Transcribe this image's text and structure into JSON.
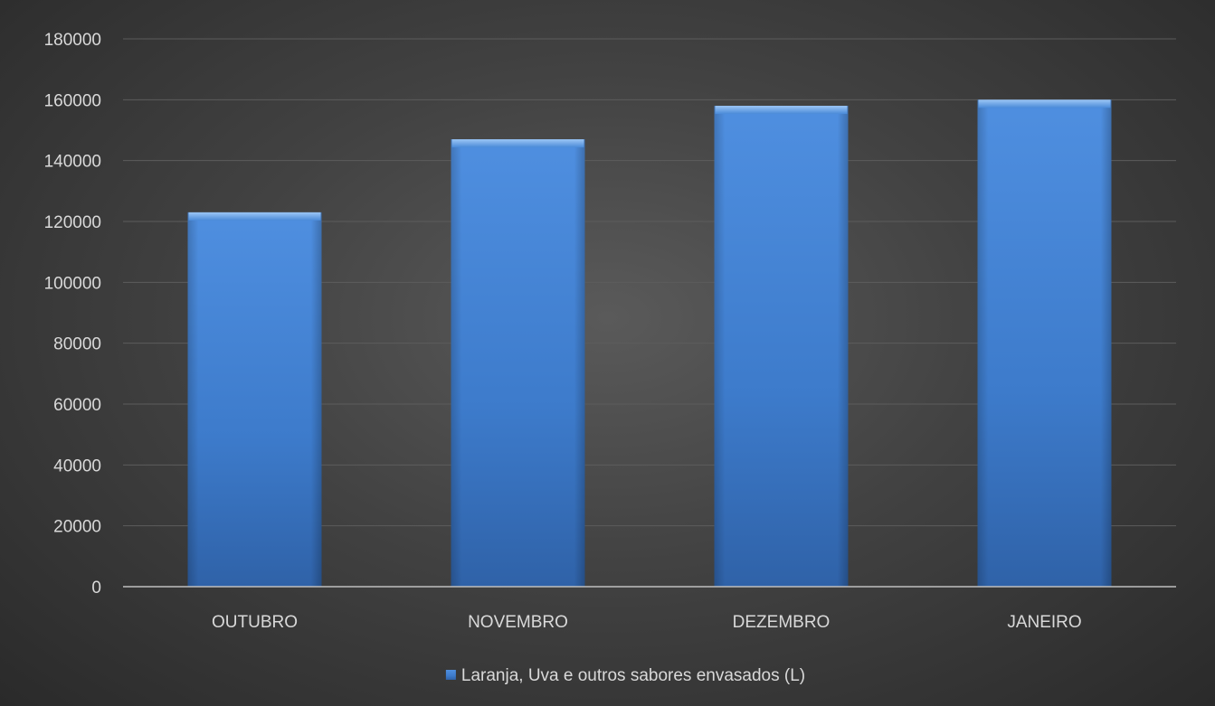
{
  "chart_data": {
    "type": "bar",
    "categories": [
      "OUTUBRO",
      "NOVEMBRO",
      "DEZEMBRO",
      "JANEIRO"
    ],
    "series": [
      {
        "name": "Laranja, Uva e outros sabores envasados (L)",
        "values": [
          123000,
          147000,
          158000,
          160000
        ],
        "color": "#3f7fd0"
      }
    ],
    "ylim": [
      0,
      180000
    ],
    "yticks": [
      0,
      20000,
      40000,
      60000,
      80000,
      100000,
      120000,
      140000,
      160000,
      180000
    ],
    "grid": true,
    "legend": "bottom",
    "colors": {
      "background": "#424242",
      "gridline": "#5c5c5c",
      "axis": "#bfbfbf",
      "text": "#d9d9d9",
      "bar_top": "#5b9be6",
      "bar_mid": "#3f7fd0",
      "bar_bottom": "#2f62a8"
    }
  }
}
